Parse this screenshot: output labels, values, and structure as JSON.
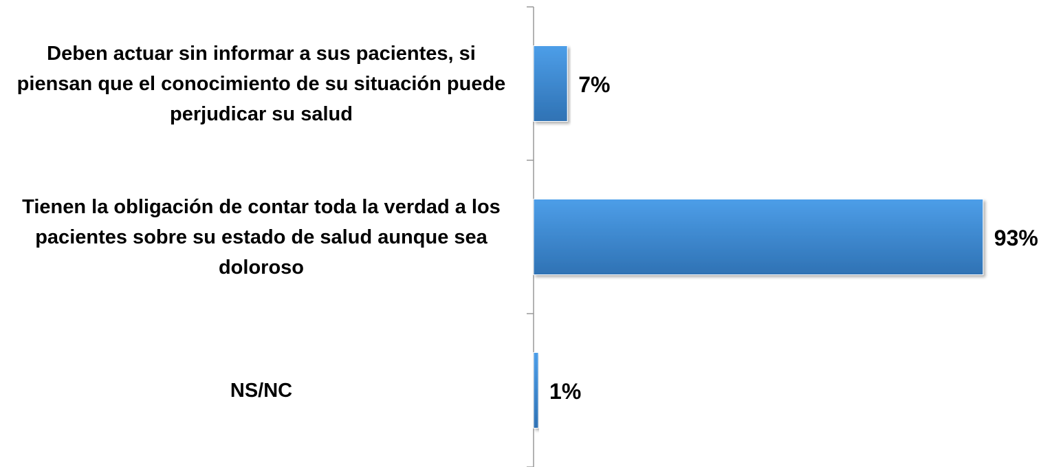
{
  "chart_data": {
    "type": "bar",
    "orientation": "horizontal",
    "categories": [
      "Deben actuar sin informar a sus pacientes, si piensan que el conocimiento de su situación puede perjudicar su salud",
      "Tienen la obligación de contar toda la verdad a los pacientes sobre su estado de salud aunque sea doloroso",
      "NS/NC"
    ],
    "values": [
      7,
      93,
      1
    ],
    "value_labels": [
      "7%",
      "93%",
      "1%"
    ],
    "color": "#3f8bd8",
    "xlim": [
      0,
      100
    ]
  }
}
